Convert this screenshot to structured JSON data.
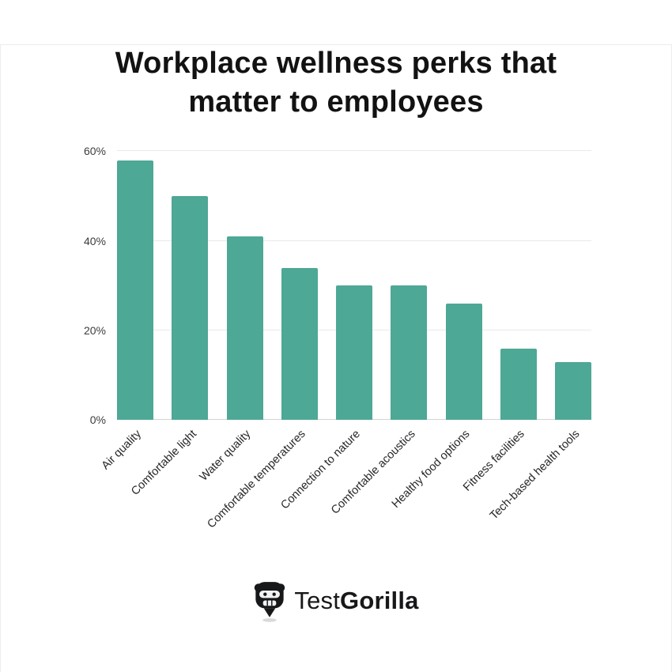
{
  "title": "Workplace wellness perks that matter to employees",
  "chart_data": {
    "type": "bar",
    "title": "Workplace wellness perks that matter to employees",
    "categories": [
      "Air quality",
      "Comfortable light",
      "Water quality",
      "Comfortable temperatures",
      "Connection to nature",
      "Comfortable acoustics",
      "Healthy food options",
      "Fitness facilities",
      "Tech-based health tools"
    ],
    "values": [
      58,
      50,
      41,
      34,
      30,
      30,
      26,
      16,
      13
    ],
    "xlabel": "",
    "ylabel": "",
    "ylim": [
      0,
      60
    ],
    "yticks": [
      0,
      20,
      40,
      60
    ],
    "ytick_labels": [
      "0%",
      "20%",
      "40%",
      "60%"
    ],
    "bar_color": "#4da895",
    "grid": true,
    "legend": false
  },
  "footer": {
    "brand_first": "Test",
    "brand_second": "Gorilla"
  },
  "colors": {
    "bar": "#4da895",
    "title_text": "#121212",
    "grid_line": "#e9e9e9",
    "axis_text": "#3c3c3c"
  }
}
